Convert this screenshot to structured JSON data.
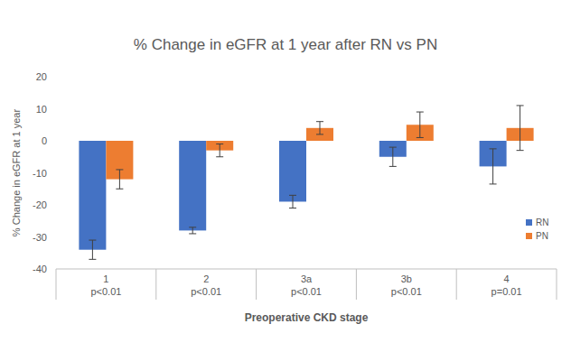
{
  "chart_data": {
    "type": "bar",
    "title": "% Change in eGFR at 1 year after RN vs PN",
    "x_label": "Preoperative CKD stage",
    "y_label": "% Change in eGFR at 1 year",
    "categories": [
      "1",
      "2",
      "3a",
      "3b",
      "4"
    ],
    "annotations": [
      "p<0.01",
      "p<0.01",
      "p<0.01",
      "p<0.01",
      "p=0.01"
    ],
    "series": [
      {
        "name": "RN",
        "color": "#4472c4",
        "values": [
          -34,
          -28,
          -19,
          -5,
          -8
        ],
        "errors": [
          3,
          1,
          2,
          3,
          5.5
        ]
      },
      {
        "name": "PN",
        "color": "#ed7d31",
        "values": [
          -12,
          -3,
          4,
          5,
          4
        ],
        "errors": [
          3,
          2,
          2,
          4,
          7
        ]
      }
    ],
    "ylim": [
      -40,
      20
    ],
    "yticks": [
      -40,
      -30,
      -20,
      -10,
      0,
      10,
      20
    ],
    "grid": false,
    "legend": "right"
  }
}
